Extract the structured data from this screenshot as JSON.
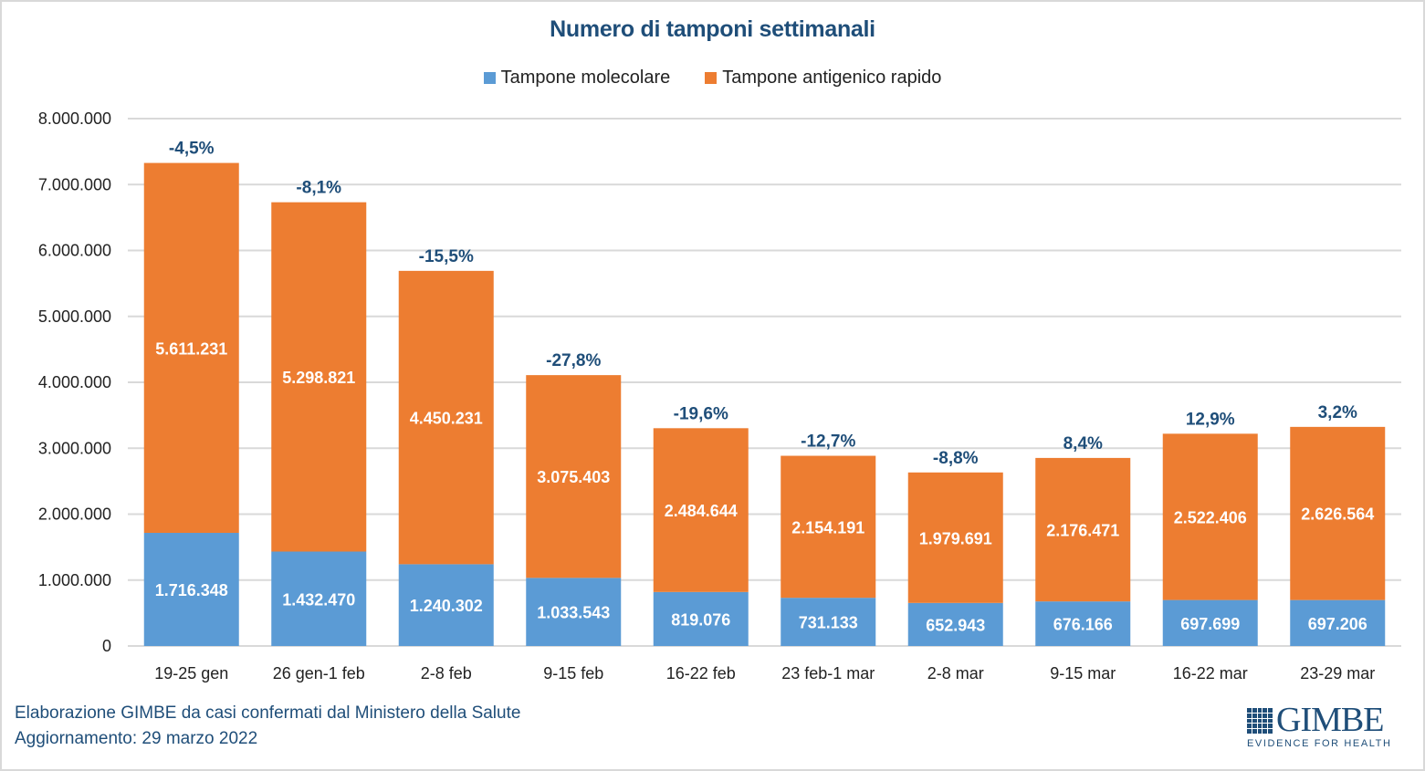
{
  "chart_data": {
    "type": "bar",
    "stacked": true,
    "title": "Numero di tamponi settimanali",
    "xlabel": "",
    "ylabel": "",
    "ylim": [
      0,
      8000000
    ],
    "yticks": [
      0,
      1000000,
      2000000,
      3000000,
      4000000,
      5000000,
      6000000,
      7000000,
      8000000
    ],
    "ytick_labels": [
      "0",
      "1.000.000",
      "2.000.000",
      "3.000.000",
      "4.000.000",
      "5.000.000",
      "6.000.000",
      "7.000.000",
      "8.000.000"
    ],
    "grid": true,
    "legend_position": "top",
    "categories": [
      "19-25 gen",
      "26 gen-1 feb",
      "2-8 feb",
      "9-15 feb",
      "16-22 feb",
      "23 feb-1 mar",
      "2-8 mar",
      "9-15 mar",
      "16-22 mar",
      "23-29 mar"
    ],
    "series": [
      {
        "name": "Tampone molecolare",
        "color": "#5b9bd5",
        "values": [
          1716348,
          1432470,
          1240302,
          1033543,
          819076,
          731133,
          652943,
          676166,
          697699,
          697206
        ],
        "labels": [
          "1.716.348",
          "1.432.470",
          "1.240.302",
          "1.033.543",
          "819.076",
          "731.133",
          "652.943",
          "676.166",
          "697.699",
          "697.206"
        ]
      },
      {
        "name": "Tampone antigenico rapido",
        "color": "#ed7d31",
        "values": [
          5611231,
          5298821,
          4450231,
          3075403,
          2484644,
          2154191,
          1979691,
          2176471,
          2522406,
          2626564
        ],
        "labels": [
          "5.611.231",
          "5.298.821",
          "4.450.231",
          "3.075.403",
          "2.484.644",
          "2.154.191",
          "1.979.691",
          "2.176.471",
          "2.522.406",
          "2.626.564"
        ]
      }
    ],
    "annotations": {
      "percent_change": [
        "-4,5%",
        "-8,1%",
        "-15,5%",
        "-27,8%",
        "-19,6%",
        "-12,7%",
        "-8,8%",
        "8,4%",
        "12,9%",
        "3,2%"
      ]
    }
  },
  "footer": {
    "source": "Elaborazione GIMBE da casi confermati dal Ministero della Salute",
    "updated": "Aggiornamento: 29 marzo 2022"
  },
  "logo": {
    "name": "GIMBE",
    "tagline": "EVIDENCE FOR HEALTH"
  },
  "colors": {
    "title": "#1f4e79",
    "grid": "#d9d9d9"
  }
}
